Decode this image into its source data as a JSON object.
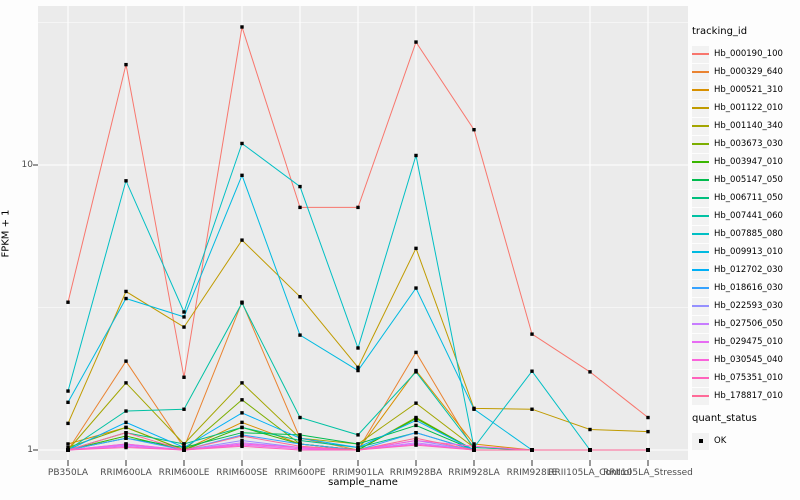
{
  "figure": {
    "background": "#FDFDFD",
    "panel_background": "#EBEBEB",
    "grid_color": "#FFFFFF",
    "axis_text_color": "#4D4D4D",
    "tick_mark_color": "#333333",
    "point_color": "#000000",
    "legend_key_fill": "#F2F2F2"
  },
  "axes": {
    "x_title": "sample_name",
    "y_title": "FPKM + 1",
    "y_tick_labels": [
      "1",
      "10"
    ],
    "y_tick_values": [
      1,
      10
    ],
    "y_minor_values": [
      3.1623,
      31.623
    ]
  },
  "legend": {
    "color_title": "tracking_id",
    "shape_title": "quant_status",
    "shape_items": [
      {
        "label": "OK"
      }
    ]
  },
  "chart_data": {
    "type": "line",
    "title": "",
    "xlabel": "sample_name",
    "ylabel": "FPKM + 1",
    "y_scale": "log10",
    "ylim": [
      1,
      36
    ],
    "grid": true,
    "legend_position": "right",
    "point_marker": "black-square",
    "categories": [
      "PB350LA",
      "RRIM600LA",
      "RRIM600LE",
      "RRIM600SE",
      "RRIM600PE",
      "RRIM901LA",
      "RRIM928BA",
      "RRIM928LA",
      "RRIM928LE",
      "RRII105LA_Control",
      "RRII105LA_Stressed"
    ],
    "series": [
      {
        "name": "Hb_000190_100",
        "color": "#F8766D",
        "values": [
          3.3,
          22.5,
          1.8,
          30.5,
          7.1,
          7.1,
          27.0,
          13.3,
          2.55,
          1.88,
          1.3
        ]
      },
      {
        "name": "Hb_000329_640",
        "color": "#EA8331",
        "values": [
          1.0,
          2.05,
          1.02,
          3.3,
          1.1,
          1.0,
          2.2,
          1.0,
          1.0,
          1.0,
          1.0
        ]
      },
      {
        "name": "Hb_000521_310",
        "color": "#D89000",
        "values": [
          1.05,
          1.2,
          1.0,
          1.25,
          1.05,
          1.0,
          1.9,
          1.05,
          1.0,
          1.0,
          1.0
        ]
      },
      {
        "name": "Hb_001122_010",
        "color": "#C09B00",
        "values": [
          1.24,
          3.6,
          2.7,
          5.45,
          3.45,
          1.95,
          5.1,
          1.4,
          1.39,
          1.18,
          1.16
        ]
      },
      {
        "name": "Hb_001140_340",
        "color": "#A3A500",
        "values": [
          1.0,
          1.72,
          1.05,
          1.72,
          1.1,
          1.05,
          1.46,
          1.02,
          1.0,
          1.0,
          1.0
        ]
      },
      {
        "name": "Hb_003673_030",
        "color": "#7CAE00",
        "values": [
          1.02,
          1.2,
          1.0,
          1.5,
          1.05,
          1.0,
          1.3,
          1.0,
          1.0,
          1.0,
          1.0
        ]
      },
      {
        "name": "Hb_003947_010",
        "color": "#39B600",
        "values": [
          1.0,
          1.12,
          1.0,
          1.2,
          1.05,
          1.0,
          1.29,
          1.0,
          1.0,
          1.0,
          1.0
        ]
      },
      {
        "name": "Hb_005147_050",
        "color": "#00BB4E",
        "values": [
          1.0,
          1.1,
          1.02,
          1.15,
          1.13,
          1.05,
          1.22,
          1.0,
          1.0,
          1.0,
          1.0
        ]
      },
      {
        "name": "Hb_006711_050",
        "color": "#00BF7D",
        "values": [
          1.0,
          1.15,
          1.05,
          1.2,
          1.08,
          1.02,
          1.15,
          1.0,
          1.0,
          1.0,
          1.0
        ]
      },
      {
        "name": "Hb_007441_060",
        "color": "#00C1A3",
        "values": [
          1.0,
          1.37,
          1.39,
          3.28,
          1.3,
          1.13,
          1.88,
          1.02,
          1.0,
          1.0,
          1.0
        ]
      },
      {
        "name": "Hb_007885_080",
        "color": "#00BFC4",
        "values": [
          1.61,
          8.8,
          3.05,
          11.9,
          8.4,
          2.28,
          10.8,
          1.02,
          1.89,
          1.0,
          1.0
        ]
      },
      {
        "name": "Hb_009913_010",
        "color": "#00BAE0",
        "values": [
          1.47,
          3.4,
          2.93,
          9.2,
          2.53,
          1.9,
          3.7,
          1.39,
          1.0,
          1.0,
          1.0
        ]
      },
      {
        "name": "Hb_012702_030",
        "color": "#00B0F6",
        "values": [
          1.0,
          1.25,
          1.02,
          1.35,
          1.1,
          1.02,
          1.27,
          1.0,
          1.0,
          1.0,
          1.0
        ]
      },
      {
        "name": "Hb_018616_030",
        "color": "#35A2FF",
        "values": [
          1.0,
          1.1,
          1.0,
          1.13,
          1.05,
          1.0,
          1.15,
          1.0,
          1.0,
          1.0,
          1.0
        ]
      },
      {
        "name": "Hb_022593_030",
        "color": "#9590FF",
        "values": [
          1.0,
          1.05,
          1.0,
          1.08,
          1.02,
          1.0,
          1.08,
          1.0,
          1.0,
          1.0,
          1.0
        ]
      },
      {
        "name": "Hb_027506_050",
        "color": "#C77CFF",
        "values": [
          1.0,
          1.04,
          1.0,
          1.06,
          1.02,
          1.0,
          1.06,
          1.0,
          1.0,
          1.0,
          1.0
        ]
      },
      {
        "name": "Hb_029475_010",
        "color": "#E76BF3",
        "values": [
          1.0,
          1.03,
          1.0,
          1.04,
          1.01,
          1.0,
          1.05,
          1.0,
          1.0,
          1.0,
          1.0
        ]
      },
      {
        "name": "Hb_030545_040",
        "color": "#FA62DB",
        "values": [
          1.0,
          1.05,
          1.0,
          1.05,
          1.02,
          1.0,
          1.08,
          1.03,
          1.0,
          1.0,
          1.0
        ]
      },
      {
        "name": "Hb_075351_010",
        "color": "#FF62BC",
        "values": [
          1.0,
          1.02,
          1.0,
          1.03,
          1.0,
          1.0,
          1.04,
          1.0,
          1.0,
          1.0,
          1.0
        ]
      },
      {
        "name": "Hb_178817_010",
        "color": "#FF6A98",
        "values": [
          1.0,
          1.15,
          1.0,
          1.12,
          1.03,
          1.0,
          1.1,
          1.0,
          1.0,
          1.0,
          1.0
        ]
      }
    ]
  }
}
